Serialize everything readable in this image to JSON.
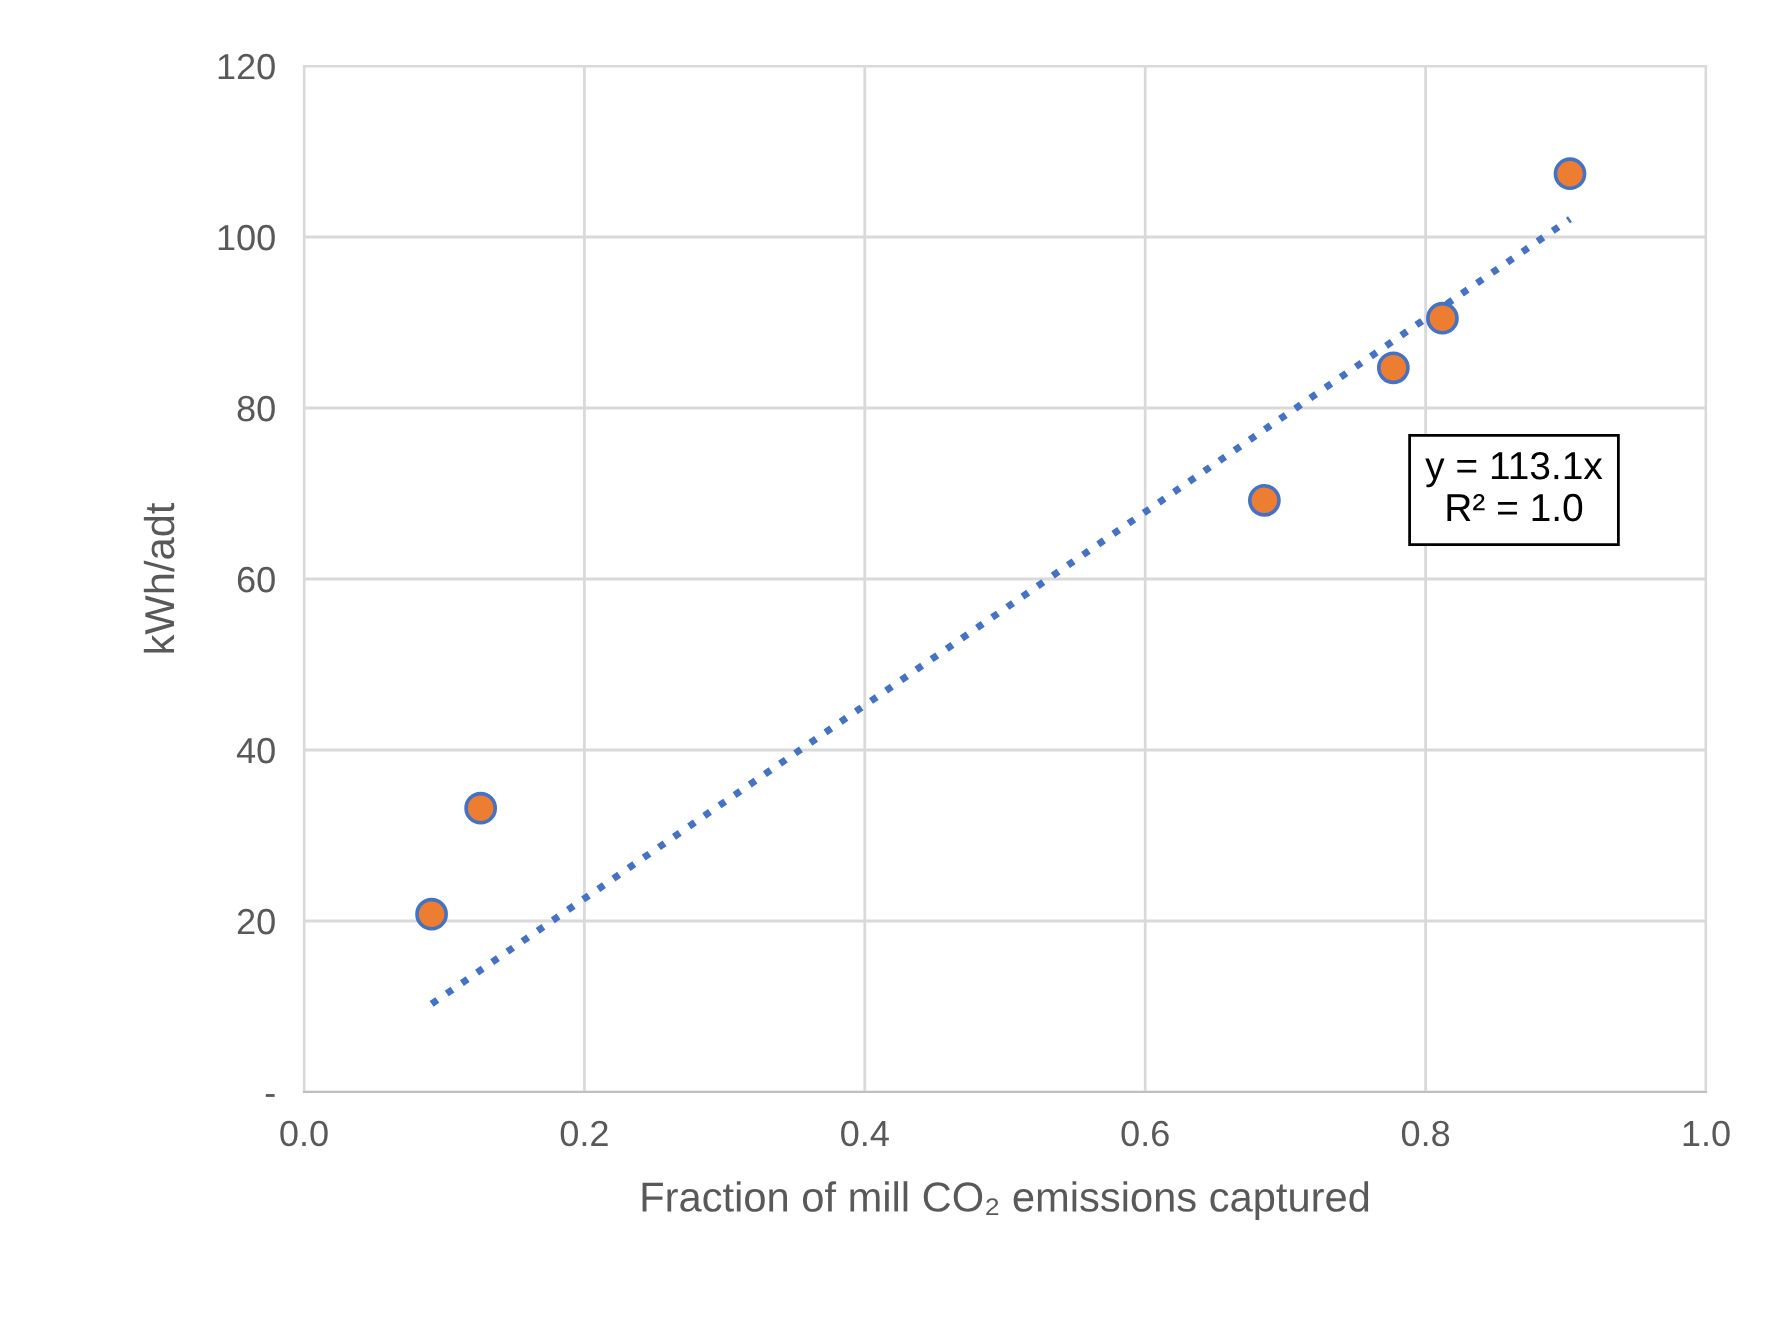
{
  "chart_data": {
    "type": "scatter",
    "xlabel": "Fraction of mill CO₂ emissions captured",
    "ylabel": "kWh/adt",
    "xlim": [
      0.0,
      1.0
    ],
    "xticks": [
      {
        "value": 0.0,
        "label": "0.0"
      },
      {
        "value": 0.2,
        "label": "0.2"
      },
      {
        "value": 0.4,
        "label": "0.4"
      },
      {
        "value": 0.6,
        "label": "0.6"
      },
      {
        "value": 0.8,
        "label": "0.8"
      },
      {
        "value": 1.0,
        "label": "1.0"
      }
    ],
    "ylim": [
      0,
      120
    ],
    "yticks": [
      {
        "value": 0,
        "label": "-"
      },
      20,
      40,
      60,
      80,
      100,
      120
    ],
    "grid": true,
    "series": [
      {
        "marker": "circle",
        "color": "#ed7d31",
        "x": [
          0.091,
          0.126,
          0.685,
          0.777,
          0.812,
          0.903
        ],
        "values": [
          20.8,
          33.2,
          69.2,
          84.7,
          90.5,
          107.4
        ]
      },
      {
        "type": "line",
        "color": "#4472c4",
        "line_style": "dotted",
        "x": [
          0.091,
          0.903
        ],
        "values": [
          10.3,
          102.1
        ]
      }
    ],
    "annotations": [
      "y = 113.1x\nR² = 1.0"
    ]
  }
}
